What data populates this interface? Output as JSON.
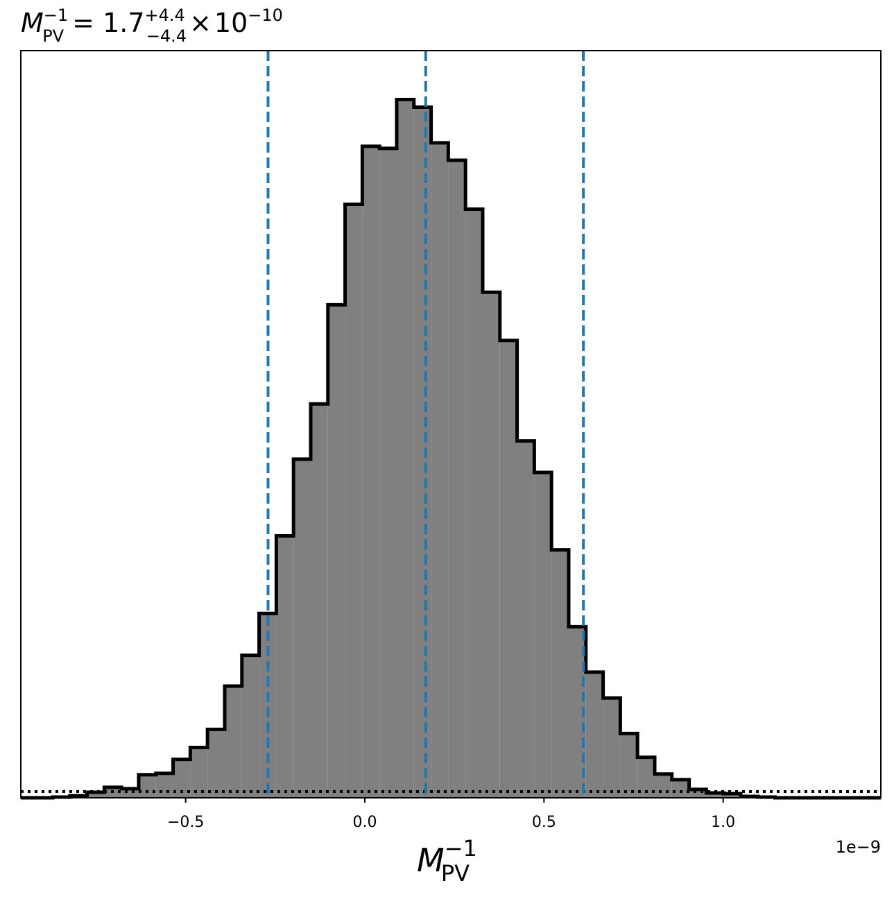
{
  "chart_data": {
    "type": "histogram",
    "title": {
      "symbol": "M",
      "subscript": "PV",
      "superscript": "−1",
      "equals": " = ",
      "median": "1.7",
      "upper_err": "+4.4",
      "lower_err": "−4.4",
      "times": "×",
      "base": "10",
      "exponent": "−10"
    },
    "xlabel": {
      "symbol": "M",
      "subscript": "PV",
      "superscript": "−1"
    },
    "x_offset_label": "1e−9",
    "xlim": [
      -0.96,
      1.44
    ],
    "xticks": [
      -0.5,
      0.0,
      0.5,
      1.0
    ],
    "xtick_labels": [
      "−0.5",
      "0.0",
      "0.5",
      "1.0"
    ],
    "y_axis_shown": false,
    "ylim": [
      0,
      1.07
    ],
    "bin_edges": [
      -0.871,
      -0.823,
      -0.775,
      -0.727,
      -0.679,
      -0.631,
      -0.583,
      -0.535,
      -0.487,
      -0.439,
      -0.391,
      -0.343,
      -0.295,
      -0.247,
      -0.199,
      -0.151,
      -0.103,
      -0.055,
      -0.007,
      0.041,
      0.089,
      0.137,
      0.185,
      0.233,
      0.281,
      0.329,
      0.377,
      0.425,
      0.473,
      0.521,
      0.569,
      0.617,
      0.665,
      0.713,
      0.761,
      0.809,
      0.857,
      0.905,
      0.953,
      1.001,
      1.049,
      1.097,
      1.145
    ],
    "counts": [
      0.001,
      0.003,
      0.008,
      0.015,
      0.013,
      0.033,
      0.035,
      0.055,
      0.072,
      0.098,
      0.16,
      0.204,
      0.264,
      0.375,
      0.485,
      0.564,
      0.706,
      0.85,
      0.933,
      0.93,
      1.0,
      0.989,
      0.938,
      0.913,
      0.843,
      0.724,
      0.655,
      0.511,
      0.466,
      0.355,
      0.245,
      0.18,
      0.143,
      0.092,
      0.058,
      0.034,
      0.026,
      0.012,
      0.007,
      0.006,
      0.002,
      0.001
    ],
    "vertical_lines": [
      {
        "x": -0.27,
        "style": "dashed",
        "color": "#1f77b4"
      },
      {
        "x": 0.17,
        "style": "dashed",
        "color": "#1f77b4"
      },
      {
        "x": 0.61,
        "style": "dashed",
        "color": "#1f77b4"
      }
    ],
    "horizontal_lines": [
      {
        "y": 0.009,
        "style": "dotted",
        "color": "#000000"
      }
    ],
    "fill_color": "#808080",
    "edge_color": "#000000",
    "grid": false,
    "legend": "none"
  }
}
